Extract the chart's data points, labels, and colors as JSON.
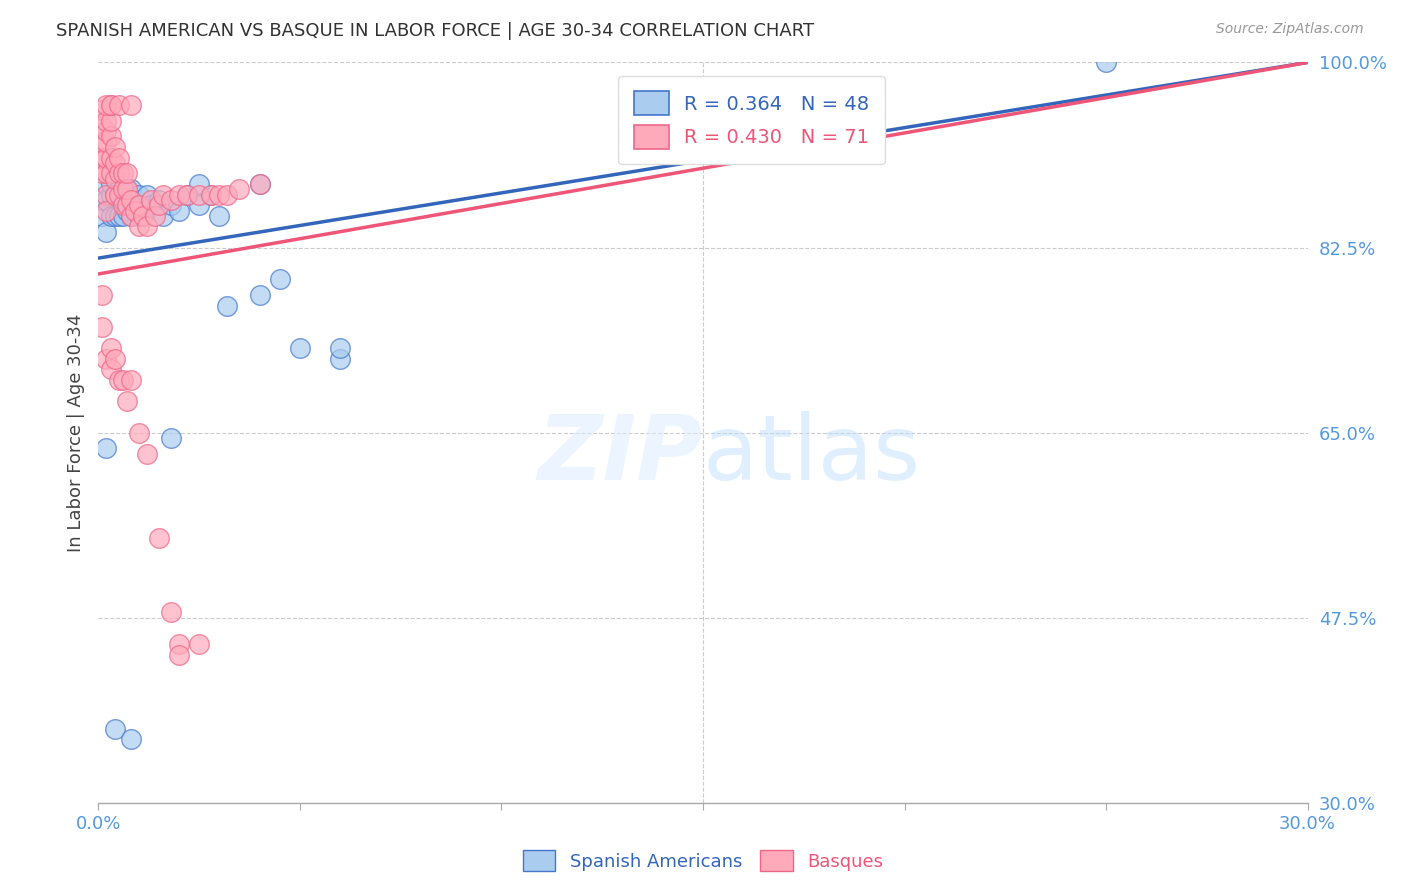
{
  "title": "SPANISH AMERICAN VS BASQUE IN LABOR FORCE | AGE 30-34 CORRELATION CHART",
  "source": "Source: ZipAtlas.com",
  "ylabel": "In Labor Force | Age 30-34",
  "xlim": [
    0.0,
    0.3
  ],
  "ylim": [
    0.3,
    1.0
  ],
  "xtick_positions": [
    0.0,
    0.05,
    0.1,
    0.15,
    0.2,
    0.25,
    0.3
  ],
  "xticklabels": [
    "0.0%",
    "",
    "",
    "",
    "",
    "",
    "30.0%"
  ],
  "ytick_positions": [
    0.3,
    0.475,
    0.65,
    0.825,
    1.0
  ],
  "ytick_labels": [
    "30.0%",
    "47.5%",
    "65.0%",
    "82.5%",
    "100.0%"
  ],
  "blue_R": 0.364,
  "blue_N": 48,
  "pink_R": 0.43,
  "pink_N": 71,
  "blue_color": "#AACCEE",
  "pink_color": "#FFAABB",
  "blue_edge_color": "#4477CC",
  "pink_edge_color": "#EE6688",
  "blue_line_color": "#3366BB",
  "pink_line_color": "#EE5577",
  "axis_label_color": "#5599DD",
  "grid_color": "#CCCCCC",
  "watermark_color": "#DDEEFF",
  "legend_label_blue": "Spanish Americans",
  "legend_label_pink": "Basques",
  "blue_trend_x0": 0.0,
  "blue_trend_y0": 0.815,
  "blue_trend_x1": 0.3,
  "blue_trend_y1": 1.0,
  "pink_trend_x0": 0.0,
  "pink_trend_y0": 0.8,
  "pink_trend_x1": 0.3,
  "pink_trend_y1": 1.0,
  "blue_x": [
    0.001,
    0.001,
    0.002,
    0.002,
    0.002,
    0.003,
    0.003,
    0.003,
    0.004,
    0.004,
    0.004,
    0.005,
    0.005,
    0.005,
    0.005,
    0.006,
    0.006,
    0.007,
    0.007,
    0.008,
    0.008,
    0.009,
    0.01,
    0.01,
    0.011,
    0.012,
    0.013,
    0.015,
    0.016,
    0.018,
    0.02,
    0.022,
    0.025,
    0.028,
    0.03,
    0.032,
    0.04,
    0.045,
    0.05,
    0.06,
    0.002,
    0.018,
    0.025,
    0.04,
    0.06,
    0.25,
    0.004,
    0.008
  ],
  "blue_y": [
    0.855,
    0.87,
    0.84,
    0.87,
    0.885,
    0.855,
    0.875,
    0.885,
    0.855,
    0.875,
    0.895,
    0.855,
    0.875,
    0.88,
    0.895,
    0.855,
    0.87,
    0.86,
    0.88,
    0.855,
    0.88,
    0.87,
    0.855,
    0.875,
    0.86,
    0.875,
    0.865,
    0.87,
    0.855,
    0.865,
    0.86,
    0.875,
    0.865,
    0.875,
    0.855,
    0.77,
    0.78,
    0.795,
    0.73,
    0.72,
    0.635,
    0.645,
    0.885,
    0.885,
    0.73,
    1.0,
    0.37,
    0.36
  ],
  "pink_x": [
    0.001,
    0.001,
    0.001,
    0.001,
    0.001,
    0.002,
    0.002,
    0.002,
    0.002,
    0.002,
    0.002,
    0.002,
    0.003,
    0.003,
    0.003,
    0.003,
    0.003,
    0.004,
    0.004,
    0.004,
    0.004,
    0.005,
    0.005,
    0.005,
    0.006,
    0.006,
    0.006,
    0.007,
    0.007,
    0.007,
    0.008,
    0.008,
    0.009,
    0.01,
    0.01,
    0.011,
    0.012,
    0.013,
    0.014,
    0.015,
    0.016,
    0.018,
    0.02,
    0.022,
    0.025,
    0.028,
    0.03,
    0.032,
    0.035,
    0.04,
    0.002,
    0.003,
    0.005,
    0.008,
    0.001,
    0.001,
    0.002,
    0.003,
    0.003,
    0.004,
    0.005,
    0.006,
    0.007,
    0.008,
    0.01,
    0.012,
    0.015,
    0.018,
    0.02,
    0.025,
    0.02
  ],
  "pink_y": [
    0.895,
    0.91,
    0.925,
    0.94,
    0.955,
    0.895,
    0.91,
    0.925,
    0.935,
    0.945,
    0.875,
    0.86,
    0.895,
    0.91,
    0.93,
    0.945,
    0.96,
    0.875,
    0.89,
    0.905,
    0.92,
    0.875,
    0.895,
    0.91,
    0.865,
    0.88,
    0.895,
    0.865,
    0.88,
    0.895,
    0.855,
    0.87,
    0.86,
    0.845,
    0.865,
    0.855,
    0.845,
    0.87,
    0.855,
    0.865,
    0.875,
    0.87,
    0.875,
    0.875,
    0.875,
    0.875,
    0.875,
    0.875,
    0.88,
    0.885,
    0.96,
    0.96,
    0.96,
    0.96,
    0.78,
    0.75,
    0.72,
    0.71,
    0.73,
    0.72,
    0.7,
    0.7,
    0.68,
    0.7,
    0.65,
    0.63,
    0.55,
    0.48,
    0.45,
    0.45,
    0.44
  ]
}
